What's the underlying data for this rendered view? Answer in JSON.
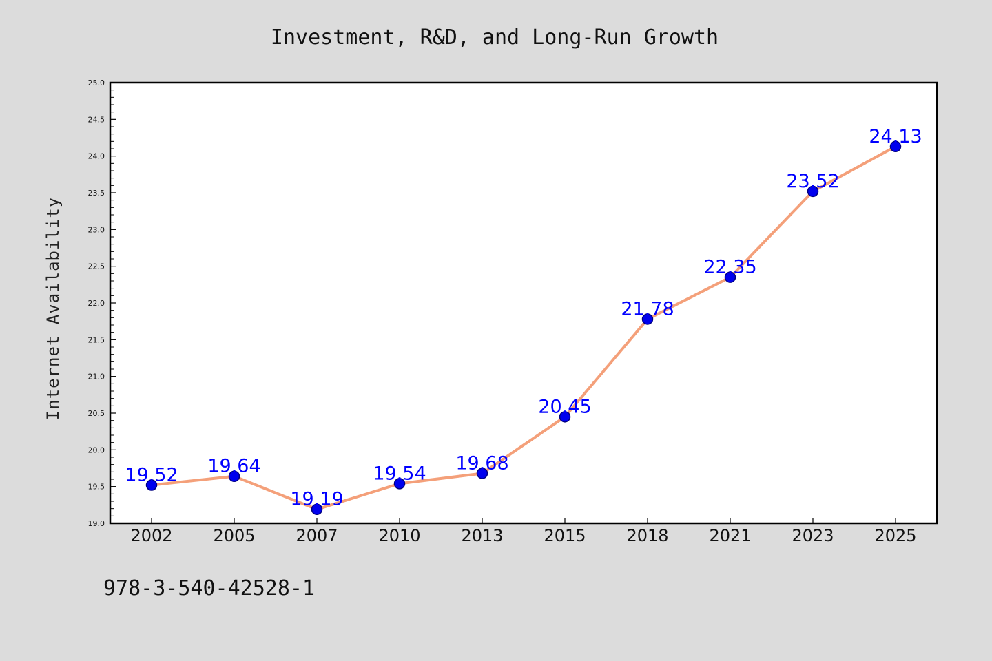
{
  "chart_data": {
    "type": "line",
    "title": "Investment, R&D, and Long-Run Growth",
    "xlabel": "",
    "ylabel": "Internet Availability",
    "categories": [
      "2002",
      "2005",
      "2007",
      "2010",
      "2013",
      "2015",
      "2018",
      "2021",
      "2023",
      "2025"
    ],
    "series": [
      {
        "values": [
          19.52,
          19.64,
          19.19,
          19.54,
          19.68,
          20.45,
          21.78,
          22.35,
          23.52,
          24.13
        ],
        "data_labels": [
          "19.52",
          "19.64",
          "19.19",
          "19.54",
          "19.68",
          "20.45",
          "21.78",
          "22.35",
          "23.52",
          "24.13"
        ]
      }
    ],
    "ylim": [
      19.0,
      25.0
    ],
    "y_ticks": [
      "19.0",
      "19.5",
      "20.0",
      "20.5",
      "21.0",
      "21.5",
      "22.0",
      "22.5",
      "23.0",
      "23.5",
      "24.0",
      "24.5",
      "25.0"
    ],
    "grid": false,
    "legend": "none",
    "colors": {
      "line": "#f4a07a",
      "marker_fill": "#0000ee",
      "marker_stroke": "#000080",
      "data_label": "#0000ff",
      "plot_background": "#ffffff",
      "figure_background": "#dcdcdc",
      "axis": "#000000"
    }
  },
  "footer": {
    "isbn": "978-3-540-42528-1"
  }
}
